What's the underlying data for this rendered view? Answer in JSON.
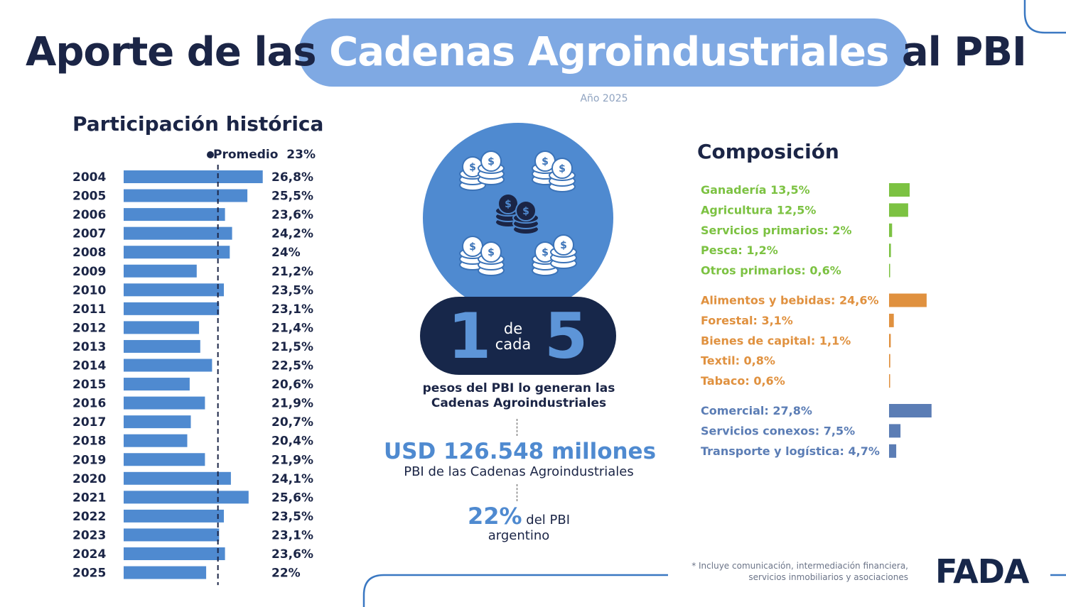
{
  "header": {
    "title_pre": "Aporte de las ",
    "title_highlight": "Cadenas Agroindustriales",
    "title_post": " al PBI",
    "year": "Año 2025"
  },
  "historical": {
    "heading": "Participación histórica",
    "average_label": "Promedio",
    "average_value": "23%"
  },
  "center": {
    "ratio_num1": "1",
    "ratio_de": "de",
    "ratio_cada": "cada",
    "ratio_num2": "5",
    "ratio_text": "pesos del PBI lo generan las Cadenas Agroindustriales",
    "usd_value": "USD 126.548 millones",
    "usd_sub": "PBI de las Cadenas Agroindustriales",
    "pct_value": "22%",
    "pct_rest": " del PBI",
    "pct_sub": "argentino",
    "icon": "coins-icon"
  },
  "composition": {
    "heading": "Composición"
  },
  "footnote": "* Incluye comunicación, intermediación financiera, servicios inmobiliarios y asociaciones",
  "logo": "FADA",
  "colors": {
    "navy": "#1b2546",
    "blue": "#4f8ad0",
    "green": "#7cc242",
    "orange": "#e0913f",
    "slate": "#5b7db5"
  },
  "chart_data": [
    {
      "type": "bar",
      "orientation": "horizontal",
      "title": "Participación histórica",
      "categories": [
        "2004",
        "2005",
        "2006",
        "2007",
        "2008",
        "2009",
        "2010",
        "2011",
        "2012",
        "2013",
        "2014",
        "2015",
        "2016",
        "2017",
        "2018",
        "2019",
        "2020",
        "2021",
        "2022",
        "2023",
        "2024",
        "2025"
      ],
      "values": [
        26.8,
        25.5,
        23.6,
        24.2,
        24,
        21.2,
        23.5,
        23.1,
        21.4,
        21.5,
        22.5,
        20.6,
        21.9,
        20.7,
        20.4,
        21.9,
        24.1,
        25.6,
        23.5,
        23.1,
        23.6,
        22
      ],
      "value_labels": [
        "26,8%",
        "25,5%",
        "23,6%",
        "24,2%",
        "24%",
        "21,2%",
        "23,5%",
        "23,1%",
        "21,4%",
        "21,5%",
        "22,5%",
        "20,6%",
        "21,9%",
        "20,7%",
        "20,4%",
        "21,9%",
        "24,1%",
        "25,6%",
        "23,5%",
        "23,1%",
        "23,6%",
        "22%"
      ],
      "reference_line": 23,
      "xlim": [
        15,
        27
      ],
      "color": "#4f8ad0"
    },
    {
      "type": "bar",
      "orientation": "horizontal",
      "title": "Composición",
      "groups": [
        {
          "color": "#7cc242",
          "items": [
            {
              "label": "Ganadería 13,5%",
              "value": 13.5
            },
            {
              "label": "Agricultura 12,5%",
              "value": 12.5
            },
            {
              "label": "Servicios primarios: 2%",
              "value": 2
            },
            {
              "label": "Pesca: 1,2%",
              "value": 1.2
            },
            {
              "label": "Otros primarios: 0,6%",
              "value": 0.6
            }
          ]
        },
        {
          "color": "#e0913f",
          "items": [
            {
              "label": "Alimentos y bebidas: 24,6%",
              "value": 24.6
            },
            {
              "label": "Forestal: 3,1%",
              "value": 3.1
            },
            {
              "label": "Bienes de capital: 1,1%",
              "value": 1.1
            },
            {
              "label": "Textil: 0,8%",
              "value": 0.8
            },
            {
              "label": "Tabaco: 0,6%",
              "value": 0.6
            }
          ]
        },
        {
          "color": "#5b7db5",
          "items": [
            {
              "label": "Comercial: 27,8%",
              "value": 27.8
            },
            {
              "label": "Servicios conexos: 7,5%",
              "value": 7.5
            },
            {
              "label": "Transporte y logística: 4,7%",
              "value": 4.7
            }
          ]
        }
      ]
    }
  ]
}
